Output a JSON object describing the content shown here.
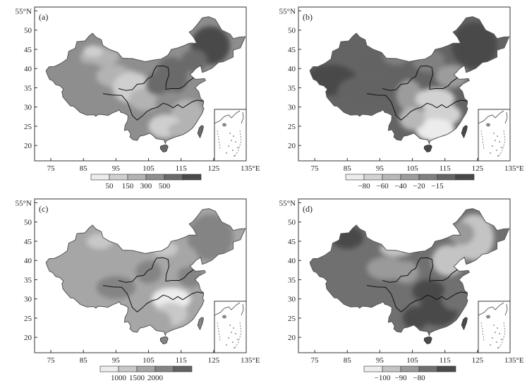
{
  "figure": {
    "panels": [
      {
        "id": "a",
        "label": "(a)",
        "lat_ticks": [
          "55°N",
          "50",
          "45",
          "40",
          "35",
          "30",
          "25",
          "20"
        ],
        "lon_ticks": [
          "75",
          "85",
          "95",
          "105",
          "115",
          "125",
          "135°E"
        ],
        "legend": {
          "labels": [
            "50",
            "150",
            "300",
            "500"
          ],
          "colors": [
            "#ececec",
            "#cfcfcf",
            "#b3b3b3",
            "#8e8e8e",
            "#6a6a6a",
            "#4a4a4a"
          ]
        }
      },
      {
        "id": "b",
        "label": "(b)",
        "lat_ticks": [
          "55°N",
          "50",
          "45",
          "40",
          "35",
          "30",
          "25",
          "20"
        ],
        "lon_ticks": [
          "75",
          "85",
          "95",
          "105",
          "115",
          "125",
          "135°E"
        ],
        "legend": {
          "labels": [
            "−80",
            "−60",
            "−40",
            "−20",
            "−15"
          ],
          "colors": [
            "#ececec",
            "#d2d2d2",
            "#b8b8b8",
            "#9c9c9c",
            "#808080",
            "#646464",
            "#484848"
          ]
        }
      },
      {
        "id": "c",
        "label": "(c)",
        "lat_ticks": [
          "55°N",
          "50",
          "45",
          "40",
          "35",
          "30",
          "25",
          "20"
        ],
        "lon_ticks": [
          "75",
          "85",
          "95",
          "105",
          "115",
          "125",
          "135°E"
        ],
        "legend": {
          "labels": [
            "1000",
            "1500",
            "2000"
          ],
          "colors": [
            "#ececec",
            "#c8c8c8",
            "#a6a6a6",
            "#848484",
            "#626262"
          ]
        }
      },
      {
        "id": "d",
        "label": "(d)",
        "lat_ticks": [
          "55°N",
          "50",
          "45",
          "40",
          "35",
          "30",
          "25",
          "20"
        ],
        "lon_ticks": [
          "75",
          "85",
          "95",
          "105",
          "115",
          "125",
          "135°E"
        ],
        "legend": {
          "labels": [
            "−100",
            "−90",
            "−80"
          ],
          "colors": [
            "#ececec",
            "#c4c4c4",
            "#9a9a9a",
            "#707070",
            "#4a4a4a"
          ]
        }
      }
    ]
  }
}
